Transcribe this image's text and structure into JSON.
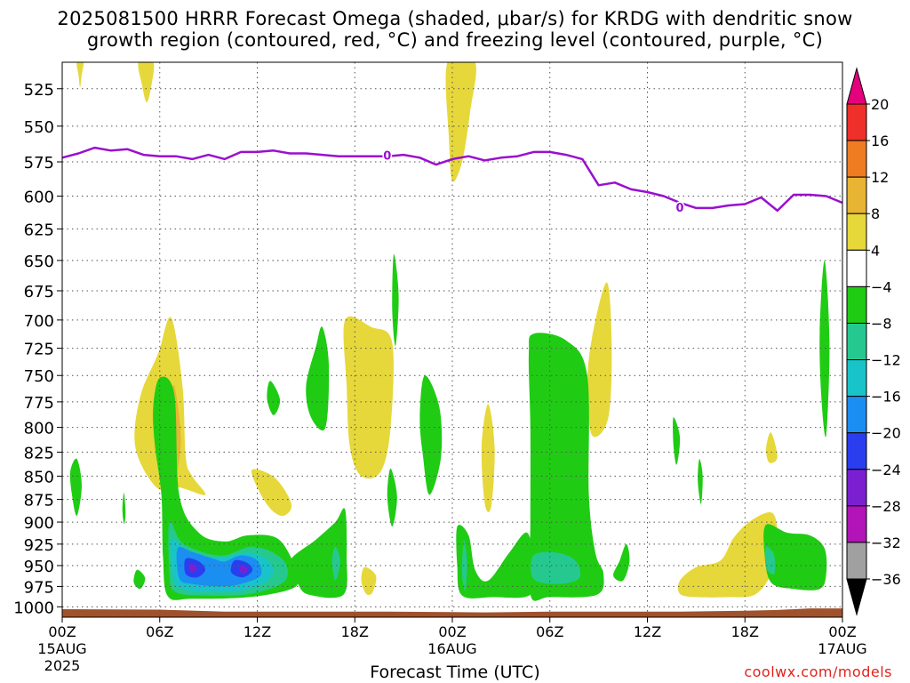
{
  "title": {
    "line1": "2025081500 HRRR Forecast Omega (shaded, μbar/s) for KRDG with dendritic snow",
    "line2": "growth region (contoured, red, °C) and freezing level (contoured, purple, °C)"
  },
  "credit": "coolwx.com/models",
  "chart_data": {
    "type": "heatmap",
    "title": "2025081500 HRRR Forecast Omega (shaded, μbar/s) for KRDG with dendritic snow growth region (contoured, red, °C) and freezing level (contoured, purple, °C)",
    "xlabel": "Forecast Time (UTC)",
    "ylabel": "",
    "x_unit": "forecast hour from 2025-08-15 00Z",
    "xlim": [
      0,
      48
    ],
    "ylim": [
      1013,
      508
    ],
    "y_axis": "pressure (hPa), inverted log scale",
    "grid": true,
    "x_ticks": [
      {
        "hour": 0,
        "label": "00Z",
        "sub": "15AUG",
        "sub2": "2025"
      },
      {
        "hour": 6,
        "label": "06Z"
      },
      {
        "hour": 12,
        "label": "12Z"
      },
      {
        "hour": 18,
        "label": "18Z"
      },
      {
        "hour": 24,
        "label": "00Z",
        "sub": "16AUG"
      },
      {
        "hour": 30,
        "label": "06Z"
      },
      {
        "hour": 36,
        "label": "12Z"
      },
      {
        "hour": 42,
        "label": "18Z"
      },
      {
        "hour": 48,
        "label": "00Z",
        "sub": "17AUG"
      }
    ],
    "y_ticks": [
      525,
      550,
      575,
      600,
      625,
      650,
      675,
      700,
      725,
      750,
      775,
      800,
      825,
      850,
      875,
      900,
      925,
      950,
      975,
      1000
    ],
    "colorbar": {
      "labels": [
        "20",
        "16",
        "12",
        "8",
        "4",
        "−4",
        "−8",
        "−12",
        "−16",
        "−20",
        "−24",
        "−28",
        "−32",
        "−36"
      ],
      "colors": [
        "#e5007d",
        "#ef2f2a",
        "#ee7d22",
        "#e8b434",
        "#e6d83a",
        "#ffffff",
        "#1fcc13",
        "#25c98f",
        "#19c4c9",
        "#1b8ef1",
        "#2a3ef0",
        "#7a20d0",
        "#b214b8",
        "#a0a0a0",
        "#000000"
      ]
    },
    "series": [
      {
        "name": "freezing level",
        "color": "#9a0fcf",
        "contour_label": "0",
        "units": "hPa",
        "points": [
          [
            0,
            572
          ],
          [
            1,
            569
          ],
          [
            2,
            565
          ],
          [
            3,
            567
          ],
          [
            4,
            566
          ],
          [
            5,
            570
          ],
          [
            6,
            571
          ],
          [
            7,
            571
          ],
          [
            8,
            573
          ],
          [
            9,
            570
          ],
          [
            10,
            573
          ],
          [
            11,
            568
          ],
          [
            12,
            568
          ],
          [
            13,
            567
          ],
          [
            14,
            569
          ],
          [
            15,
            569
          ],
          [
            16,
            570
          ],
          [
            17,
            571
          ],
          [
            18,
            571
          ],
          [
            19,
            571
          ],
          [
            20,
            571
          ],
          [
            21,
            570
          ],
          [
            22,
            572
          ],
          [
            23,
            577
          ],
          [
            24,
            573
          ],
          [
            25,
            571
          ],
          [
            26,
            574
          ],
          [
            27,
            572
          ],
          [
            28,
            571
          ],
          [
            29,
            568
          ],
          [
            30,
            568
          ],
          [
            31,
            570
          ],
          [
            32,
            573
          ],
          [
            33,
            592
          ],
          [
            34,
            590
          ],
          [
            35,
            595
          ],
          [
            36,
            597
          ],
          [
            37,
            600
          ],
          [
            38,
            605
          ],
          [
            39,
            609
          ],
          [
            40,
            609
          ],
          [
            41,
            607
          ],
          [
            42,
            606
          ],
          [
            43,
            601
          ],
          [
            44,
            611
          ],
          [
            45,
            599
          ],
          [
            46,
            599
          ],
          [
            47,
            600
          ],
          [
            48,
            605
          ]
        ]
      }
    ],
    "omega_regions": [
      {
        "value_range": [
          4,
          8
        ],
        "hours": [
          0.9,
          1.3
        ],
        "pressure": [
          508,
          523
        ]
      },
      {
        "value_range": [
          4,
          8
        ],
        "hours": [
          4.7,
          5.6
        ],
        "pressure": [
          508,
          534
        ]
      },
      {
        "value_range": [
          4,
          12
        ],
        "hours": [
          4.5,
          7.5
        ],
        "pressure": [
          698,
          862
        ]
      },
      {
        "value_range": [
          4,
          8
        ],
        "hours": [
          11.7,
          14.1
        ],
        "pressure": [
          842,
          893
        ]
      },
      {
        "value_range": [
          4,
          8
        ],
        "hours": [
          17.5,
          20.3
        ],
        "pressure": [
          697,
          850
        ]
      },
      {
        "value_range": [
          4,
          8
        ],
        "hours": [
          18.3,
          19.3
        ],
        "pressure": [
          953,
          984
        ]
      },
      {
        "value_range": [
          4,
          8
        ],
        "hours": [
          23.6,
          25.4
        ],
        "pressure": [
          508,
          589
        ]
      },
      {
        "value_range": [
          4,
          8
        ],
        "hours": [
          25.8,
          26.6
        ],
        "pressure": [
          777,
          882
        ]
      },
      {
        "value_range": [
          4,
          8
        ],
        "hours": [
          32.3,
          33.8
        ],
        "pressure": [
          668,
          808
        ]
      },
      {
        "value_range": [
          4,
          8
        ],
        "hours": [
          38.0,
          42.0
        ],
        "pressure": [
          887,
          988
        ]
      },
      {
        "value_range": [
          4,
          8
        ],
        "hours": [
          43.3,
          44.0
        ],
        "pressure": [
          805,
          836
        ]
      },
      {
        "value_range": [
          -4,
          -8
        ],
        "hours": [
          0.5,
          1.2
        ],
        "pressure": [
          832,
          893
        ]
      },
      {
        "value_range": [
          -4,
          -36
        ],
        "hours": [
          5.5,
          17.5
        ],
        "pressure": [
          752,
          990
        ]
      },
      {
        "value_range": [
          -4,
          -8
        ],
        "hours": [
          20.2,
          20.7
        ],
        "pressure": [
          645,
          723
        ]
      },
      {
        "value_range": [
          -4,
          -16
        ],
        "hours": [
          22.0,
          23.5
        ],
        "pressure": [
          750,
          870
        ]
      },
      {
        "value_range": [
          -4,
          -12
        ],
        "hours": [
          24.3,
          29.0
        ],
        "pressure": [
          905,
          985
        ]
      },
      {
        "value_range": [
          -4,
          -12
        ],
        "hours": [
          28.8,
          33.0
        ],
        "pressure": [
          712,
          985
        ]
      },
      {
        "value_range": [
          -4,
          -8
        ],
        "hours": [
          34.2,
          34.9
        ],
        "pressure": [
          925,
          968
        ]
      },
      {
        "value_range": [
          -4,
          -8
        ],
        "hours": [
          37.6,
          38.0
        ],
        "pressure": [
          788,
          838
        ]
      },
      {
        "value_range": [
          -4,
          -8
        ],
        "hours": [
          39.2,
          39.5
        ],
        "pressure": [
          832,
          880
        ]
      },
      {
        "value_range": [
          -4,
          -12
        ],
        "hours": [
          43.2,
          47.0
        ],
        "pressure": [
          903,
          980
        ]
      },
      {
        "value_range": [
          -4,
          -8
        ],
        "hours": [
          46.6,
          47.2
        ],
        "pressure": [
          650,
          808
        ]
      }
    ],
    "surface": "terrain shaded brown below ~1005 hPa"
  },
  "x_axis_title": "Forecast Time (UTC)"
}
